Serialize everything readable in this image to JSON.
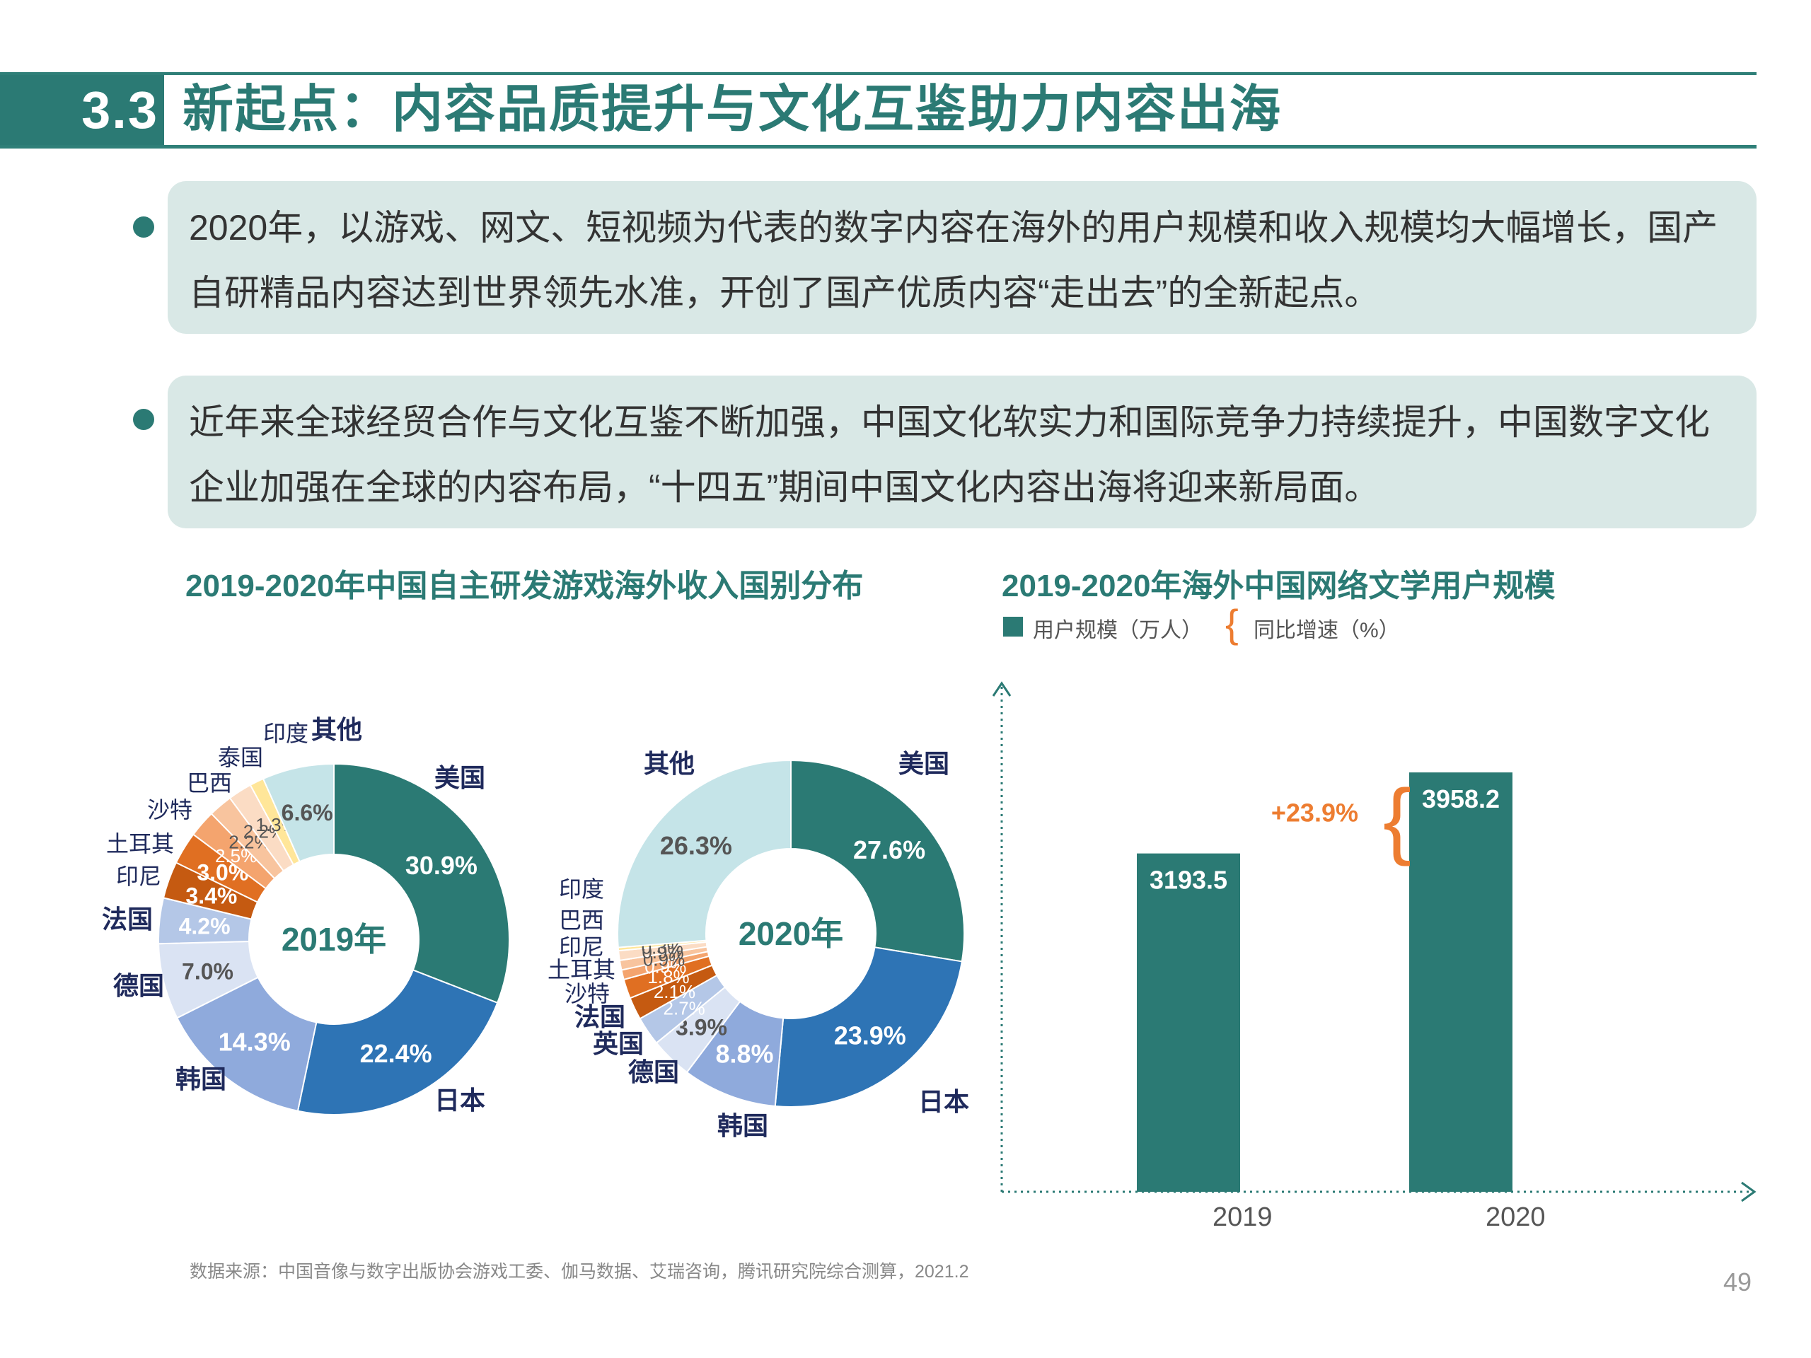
{
  "header": {
    "section_number": "3.3",
    "title": "新起点：内容品质提升与文化互鉴助力内容出海"
  },
  "bullets": [
    {
      "lines": [
        "2020年，以游戏、网文、短视频为代表的数字内容在海外的用户规模和收入规模均大幅增长，国产",
        "自研精品内容达到世界领先水准，开创了国产优质内容“走出去”的全新起点。"
      ]
    },
    {
      "lines": [
        "近年来全球经贸合作与文化互鉴不断加强，中国文化软实力和国际竞争力持续提升，中国数字文化",
        "企业加强在全球的内容布局，“十四五”期间中国文化内容出海将迎来新局面。"
      ]
    }
  ],
  "left_title": "2019-2020年中国自主研发游戏海外收入国别分布",
  "right_title": "2019-2020年海外中国网络文学用户规模",
  "colors": {
    "teal": "#2b7a74",
    "blue": "#2e74b5",
    "periwinkle": "#8faadc",
    "pale_blue": "#dae3f3",
    "light_blue": "#b4c7e7",
    "orange": "#ed7d31",
    "navy": "#1f2a5c",
    "light_cyan": "#c5e4e8"
  },
  "chart_data": [
    {
      "type": "pie",
      "center_label": "2019年",
      "slices": [
        {
          "name": "美国",
          "value": 30.9,
          "label": "30.9%",
          "color": "#2b7a74"
        },
        {
          "name": "日本",
          "value": 22.4,
          "label": "22.4%",
          "color": "#2e74b5"
        },
        {
          "name": "韩国",
          "value": 14.3,
          "label": "14.3%",
          "color": "#8faadc"
        },
        {
          "name": "德国",
          "value": 7.0,
          "label": "7.0%",
          "color": "#dae3f3"
        },
        {
          "name": "法国",
          "value": 4.2,
          "label": "4.2%",
          "color": "#b4c7e7"
        },
        {
          "name": "印尼",
          "value": 3.4,
          "label": "3.4%",
          "color": "#c55a11"
        },
        {
          "name": "土耳其",
          "value": 3.0,
          "label": "3.0%",
          "color": "#e06f22"
        },
        {
          "name": "沙特",
          "value": 2.5,
          "label": "2.5%",
          "color": "#f4a46e"
        },
        {
          "name": "巴西",
          "value": 2.2,
          "label": "2.2%",
          "color": "#f8c49e"
        },
        {
          "name": "泰国",
          "value": 2.2,
          "label": "2.2%",
          "color": "#fbdcc4"
        },
        {
          "name": "印度",
          "value": 1.3,
          "label": "1.3%",
          "color": "#ffe699"
        },
        {
          "name": "其他",
          "value": 6.6,
          "label": "6.6%",
          "color": "#c5e4e8"
        }
      ]
    },
    {
      "type": "pie",
      "center_label": "2020年",
      "slices": [
        {
          "name": "美国",
          "value": 27.6,
          "label": "27.6%",
          "color": "#2b7a74"
        },
        {
          "name": "日本",
          "value": 23.9,
          "label": "23.9%",
          "color": "#2e74b5"
        },
        {
          "name": "韩国",
          "value": 8.8,
          "label": "8.8%",
          "color": "#8faadc"
        },
        {
          "name": "德国",
          "value": 3.9,
          "label": "3.9%",
          "color": "#dae3f3"
        },
        {
          "name": "英国",
          "value": 2.7,
          "label": "2.7%",
          "color": "#b4c7e7"
        },
        {
          "name": "法国",
          "value": 2.1,
          "label": "2.1%",
          "color": "#c55a11"
        },
        {
          "name": "沙特",
          "value": 1.8,
          "label": "1.8%",
          "color": "#e06f22"
        },
        {
          "name": "土耳其",
          "value": 0.9,
          "label": "0.9%",
          "color": "#f4a46e"
        },
        {
          "name": "印尼",
          "value": 0.9,
          "label": "0.9%",
          "color": "#f8c49e"
        },
        {
          "name": "巴西",
          "value": 0.9,
          "label": "0.9%",
          "color": "#fbdcc4"
        },
        {
          "name": "印度",
          "value": 0.3,
          "label": "0.3%",
          "color": "#ffe699"
        },
        {
          "name": "其他",
          "value": 26.3,
          "label": "26.3%",
          "color": "#c5e4e8"
        }
      ]
    },
    {
      "type": "bar",
      "legend": [
        "用户规模（万人）",
        "同比增速（%）"
      ],
      "categories": [
        "2019",
        "2020"
      ],
      "series": [
        {
          "name": "用户规模（万人）",
          "values": [
            3193.5,
            3958.2
          ]
        }
      ],
      "value_labels": [
        "3193.5",
        "3958.2"
      ],
      "growth_label": "+23.9%",
      "ylim": [
        0,
        4800
      ]
    }
  ],
  "footnote": "数据来源：中国音像与数字出版协会游戏工委、伽马数据、艾瑞咨询，腾讯研究院综合测算，2021.2",
  "page_number": "49"
}
